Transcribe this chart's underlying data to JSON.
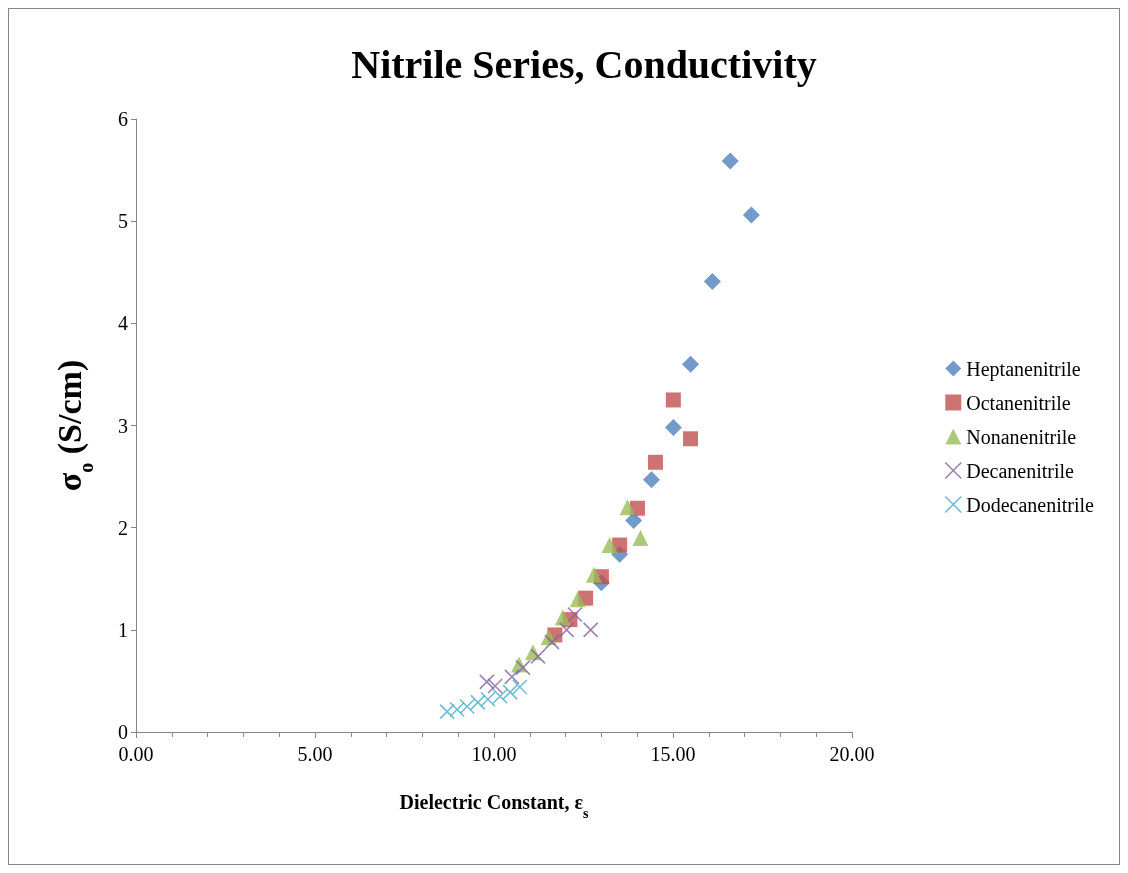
{
  "chart_data": {
    "type": "scatter",
    "title": "Nitrile Series, Conductivity",
    "xlabel": "Dielectric Constant, ε$_{s}$",
    "ylabel": "σ$_{o}$ (S/cm)",
    "xlim": [
      0,
      20
    ],
    "xticks": [
      {
        "value": 0,
        "label": "0.00"
      },
      {
        "value": 5,
        "label": "5.00"
      },
      {
        "value": 10,
        "label": "10.00"
      },
      {
        "value": 15,
        "label": "15.00"
      },
      {
        "value": 20,
        "label": "20.00"
      }
    ],
    "ylim": [
      0,
      6
    ],
    "yticks": [
      0,
      1,
      2,
      3,
      4,
      5,
      6
    ],
    "grid": false,
    "legend": "right",
    "series": [
      {
        "name": "Heptanenitrile",
        "color": "#4f81bd",
        "marker": "diamond",
        "x": [
          16.6,
          17.19,
          16.1,
          15.49,
          15.01,
          14.4,
          13.9,
          13.51,
          13.0
        ],
        "values": [
          5.59,
          5.06,
          4.41,
          3.6,
          2.98,
          2.47,
          2.07,
          1.74,
          1.46
        ]
      },
      {
        "name": "Octanenitrile",
        "color": "#c0504d",
        "marker": "square",
        "x": [
          15.01,
          15.49,
          14.51,
          14.01,
          13.51,
          13.0,
          12.56,
          12.12,
          11.7
        ],
        "values": [
          3.25,
          2.87,
          2.64,
          2.19,
          1.83,
          1.52,
          1.31,
          1.1,
          0.95
        ]
      },
      {
        "name": "Nonanenitrile",
        "color": "#9bbb59",
        "marker": "triangle",
        "x": [
          13.73,
          14.09,
          13.23,
          12.79,
          12.34,
          11.92,
          11.53,
          11.09,
          10.7
        ],
        "values": [
          2.2,
          1.9,
          1.83,
          1.54,
          1.3,
          1.12,
          0.93,
          0.78,
          0.66
        ]
      },
      {
        "name": "Decanenitrile",
        "color": "#8064a2",
        "marker": "cross",
        "x": [
          12.7,
          12.26,
          12.03,
          11.62,
          11.23,
          10.81,
          10.5,
          10.03,
          9.8
        ],
        "values": [
          1.0,
          1.15,
          1.0,
          0.88,
          0.74,
          0.63,
          0.54,
          0.45,
          0.49
        ]
      },
      {
        "name": "Dodecanenitrile",
        "color": "#4bacc6",
        "marker": "cross",
        "x": [
          8.69,
          8.97,
          9.25,
          9.55,
          9.83,
          10.17,
          10.45,
          10.72
        ],
        "values": [
          0.2,
          0.22,
          0.25,
          0.29,
          0.32,
          0.35,
          0.39,
          0.44
        ]
      }
    ]
  }
}
